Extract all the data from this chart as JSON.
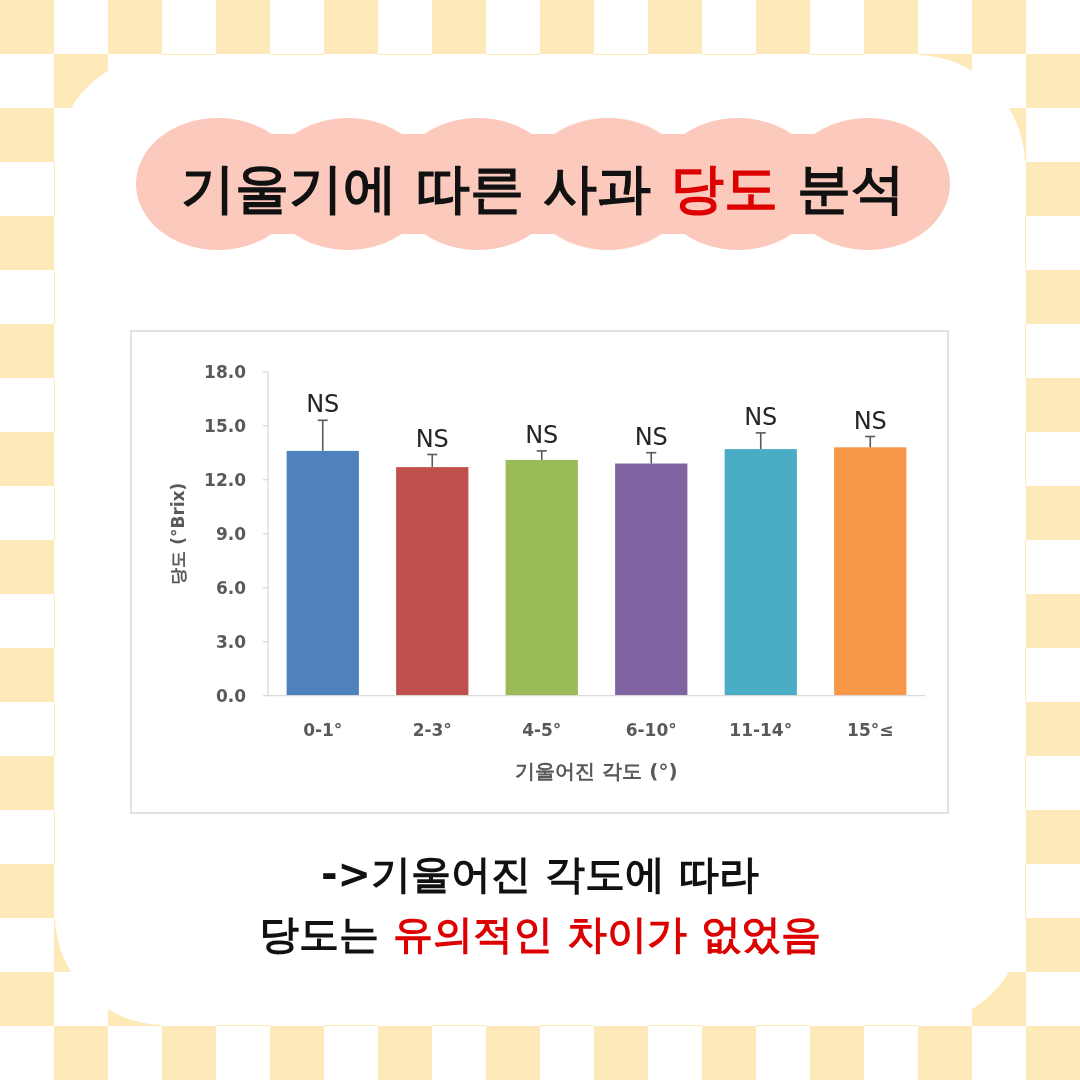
{
  "chart_data": {
    "type": "bar",
    "title": "기울기에 따른 사과 당도 분석",
    "categories": [
      "0-1°",
      "2-3°",
      "4-5°",
      "6-10°",
      "11-14°",
      "15°≤"
    ],
    "values": [
      13.6,
      12.7,
      13.1,
      12.9,
      13.7,
      13.8
    ],
    "colors": [
      "#4f81bd",
      "#c0504d",
      "#9bbb59",
      "#8064a2",
      "#4bacc6",
      "#f79646"
    ],
    "errors": [
      [
        13.6,
        15.3
      ],
      [
        12.7,
        13.4
      ],
      [
        13.1,
        13.6
      ],
      [
        12.9,
        13.5
      ],
      [
        13.7,
        14.6
      ],
      [
        13.8,
        14.4
      ]
    ],
    "ylim": [
      0,
      18
    ],
    "yticks": [
      {
        "value": 0,
        "label": "0.0"
      },
      {
        "value": 3,
        "label": "3.0"
      },
      {
        "value": 6,
        "label": "6.0"
      },
      {
        "value": 9,
        "label": "9.0"
      },
      {
        "value": 12,
        "label": "12.0"
      },
      {
        "value": 15,
        "label": "15.0"
      },
      {
        "value": 18,
        "label": "18.0"
      }
    ],
    "xlabel": "기울어진 각도 (°)",
    "ylabel": "당도 (°Brix)",
    "annotations": [
      {
        "text": "NS",
        "x": "0-1°",
        "y": 15.3
      },
      {
        "text": "NS",
        "x": "2-3°",
        "y": 13.4
      },
      {
        "text": "NS",
        "x": "4-5°",
        "y": 13.6
      },
      {
        "text": "NS",
        "x": "6-10°",
        "y": 13.5
      },
      {
        "text": "NS",
        "x": "11-14°",
        "y": 14.6
      },
      {
        "text": "NS",
        "x": "15°≤",
        "y": 14.4
      },
      "->기울어진 각도에 따라",
      "당도는 유의적인 차이가 없었음"
    ]
  }
}
